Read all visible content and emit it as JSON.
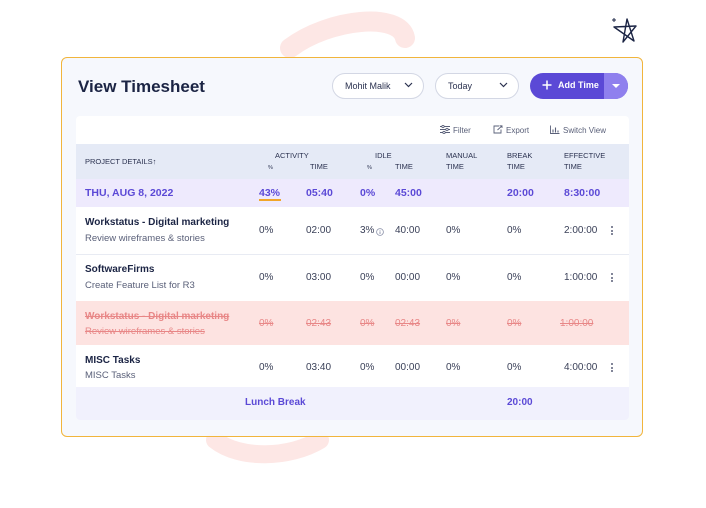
{
  "page": {
    "title": "View Timesheet"
  },
  "filters": {
    "user": "Mohit Malik",
    "date_range": "Today"
  },
  "add_button": {
    "label": "Add Time"
  },
  "toolbar": {
    "filter": "Filter",
    "export": "Export",
    "switch_view": "Switch View"
  },
  "columns": {
    "project_details": "PROJECT DETAILS",
    "sort_indicator": "↑",
    "activity": "ACTIVITY",
    "activity_pct": "%",
    "activity_time": "TIME",
    "idle": "IDLE",
    "idle_pct": "%",
    "idle_time": "TIME",
    "manual_line1": "MANUAL",
    "manual_line2": "TIME",
    "break_line1": "BREAK",
    "break_line2": "TIME",
    "effective_line1": "EFFECTIVE",
    "effective_line2": "TIME"
  },
  "date_row": {
    "date": "THU, AUG 8, 2022",
    "activity_pct": "43%",
    "activity_time": "05:40",
    "idle_pct": "0%",
    "idle_time": "45:00",
    "break_time": "20:00",
    "effective_time": "8:30:00"
  },
  "rows": [
    {
      "project": "Workstatus - Digital marketing",
      "task": "Review wireframes & stories",
      "activity_pct": "0%",
      "activity_time": "02:00",
      "idle_pct": "3%",
      "idle_time": "40:00",
      "manual_time": "0%",
      "break_time": "0%",
      "effective_time": "2:00:00",
      "deleted": false
    },
    {
      "project": "SoftwareFirms",
      "task": "Create Feature List for R3",
      "activity_pct": "0%",
      "activity_time": "03:00",
      "idle_pct": "0%",
      "idle_time": "00:00",
      "manual_time": "0%",
      "break_time": "0%",
      "effective_time": "1:00:00",
      "deleted": false
    },
    {
      "project": "Workstatus - Digital marketing",
      "task": "Review wireframes & stories",
      "activity_pct": "0%",
      "activity_time": "02:43",
      "idle_pct": "0%",
      "idle_time": "02:43",
      "manual_time": "0%",
      "break_time": "0%",
      "effective_time": "1:00:00",
      "deleted": true
    },
    {
      "project": "MISC Tasks",
      "task": "MISC Tasks",
      "activity_pct": "0%",
      "activity_time": "03:40",
      "idle_pct": "0%",
      "idle_time": "00:00",
      "manual_time": "0%",
      "break_time": "0%",
      "effective_time": "4:00:00",
      "deleted": false
    }
  ],
  "lunch_row": {
    "label": "Lunch Break",
    "break_time": "20:00"
  },
  "icons": [
    "chevron-down-icon",
    "plus-icon",
    "filter-icon",
    "export-icon",
    "chart-icon",
    "info-icon",
    "more-vertical-icon",
    "sparkle-star-icon"
  ],
  "colors": {
    "accent": "#5b49d6",
    "card_border": "#f1b53c",
    "highlight": "#f1a629",
    "deleted_bg": "#fde3e1",
    "deleted_text": "#e88787"
  }
}
